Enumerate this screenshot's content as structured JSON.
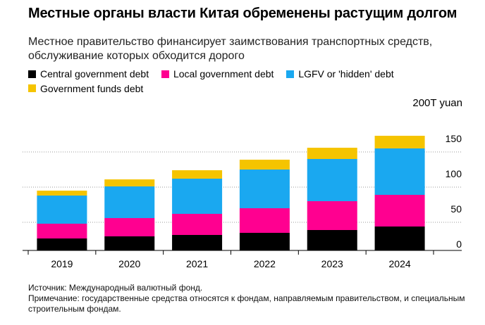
{
  "title": "Местные органы власти Китая обременены растущим долгом",
  "subtitle": "Местное правительство финансирует заимствования транспортных средств, обслуживание которых обходится дорого",
  "unit_label": "200T yuan",
  "legend": [
    {
      "label": "Central government debt",
      "color": "#000000"
    },
    {
      "label": "Local government debt",
      "color": "#ff0090"
    },
    {
      "label": "LGFV or 'hidden' debt",
      "color": "#1aa8f0"
    },
    {
      "label": "Government funds debt",
      "color": "#f5c400"
    }
  ],
  "footer": {
    "source": "Источник: Международный валютный фонд.",
    "note": "Примечание: государственные средства относятся к фондам, направляемым правительством, и специальным строительным фондам."
  },
  "chart_data": {
    "type": "bar",
    "stacked": true,
    "categories": [
      "2019",
      "2020",
      "2021",
      "2022",
      "2023",
      "2024"
    ],
    "series": [
      {
        "name": "Central government debt",
        "color": "#000000",
        "values": [
          17,
          20,
          22,
          25,
          29,
          34
        ]
      },
      {
        "name": "Local government debt",
        "color": "#ff0090",
        "values": [
          21,
          26,
          30,
          35,
          41,
          45
        ]
      },
      {
        "name": "LGFV or 'hidden' debt",
        "color": "#1aa8f0",
        "values": [
          40,
          45,
          50,
          55,
          60,
          66
        ]
      },
      {
        "name": "Government funds debt",
        "color": "#f5c400",
        "values": [
          7,
          10,
          12,
          14,
          16,
          18
        ]
      }
    ],
    "yticks": [
      0,
      50,
      100,
      150
    ],
    "ylim": [
      0,
      200
    ],
    "grid": true,
    "legend_position": "top-left"
  }
}
